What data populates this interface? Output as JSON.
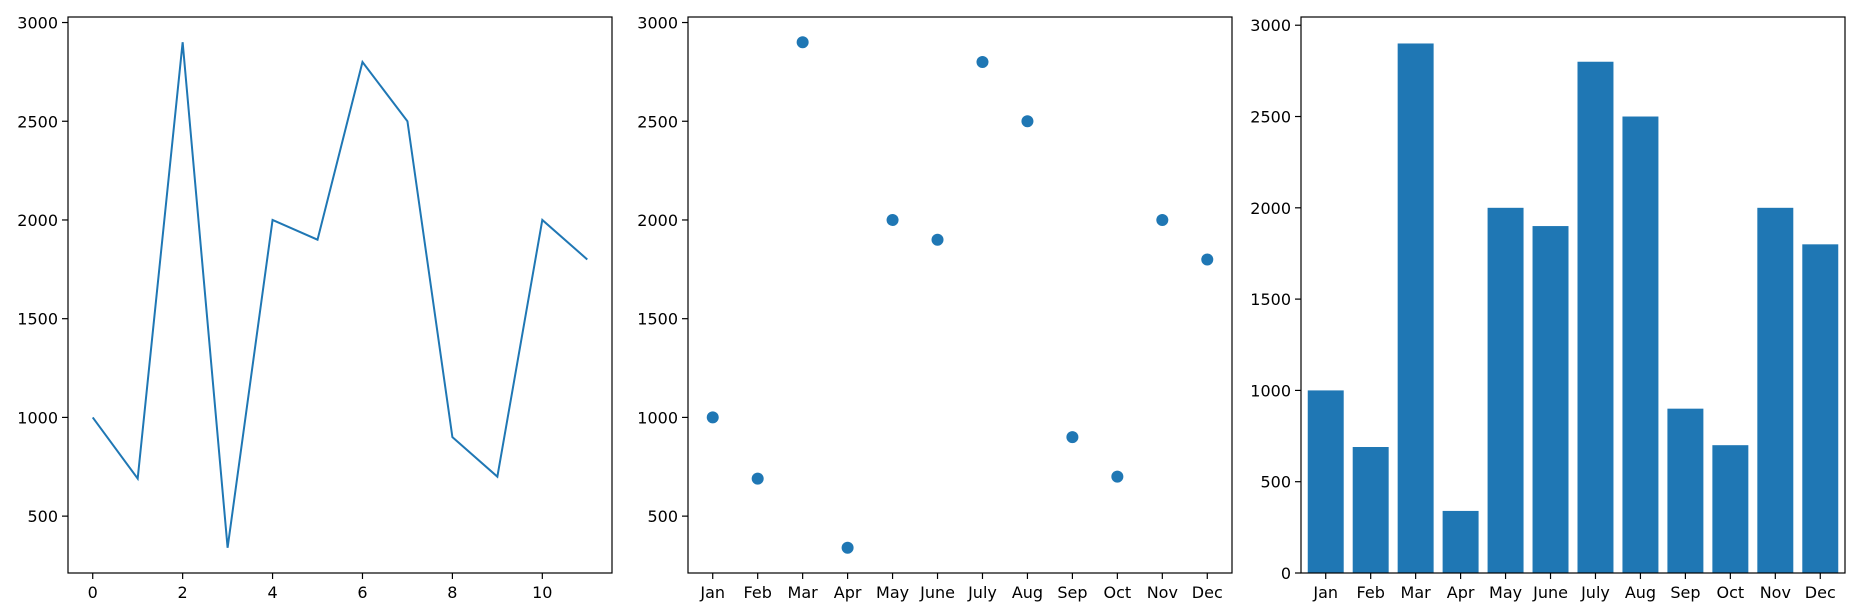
{
  "chart_data": [
    {
      "type": "line",
      "x": [
        0,
        1,
        2,
        3,
        4,
        5,
        6,
        7,
        8,
        9,
        10,
        11
      ],
      "values": [
        1000,
        690,
        2900,
        340,
        2000,
        1900,
        2800,
        2500,
        900,
        700,
        2000,
        1800
      ],
      "xticks": [
        0,
        2,
        4,
        6,
        8,
        10
      ],
      "yticks": [
        500,
        1000,
        1500,
        2000,
        2500,
        3000
      ],
      "xlim": [
        -0.55,
        11.55
      ],
      "ylim": [
        212,
        3028
      ],
      "color": "#1f77b4",
      "grid": false
    },
    {
      "type": "scatter",
      "categories": [
        "Jan",
        "Feb",
        "Mar",
        "Apr",
        "May",
        "June",
        "July",
        "Aug",
        "Sep",
        "Oct",
        "Nov",
        "Dec"
      ],
      "values": [
        1000,
        690,
        2900,
        340,
        2000,
        1900,
        2800,
        2500,
        900,
        700,
        2000,
        1800
      ],
      "yticks": [
        500,
        1000,
        1500,
        2000,
        2500,
        3000
      ],
      "ylim": [
        212,
        3028
      ],
      "color": "#1f77b4",
      "grid": false
    },
    {
      "type": "bar",
      "categories": [
        "Jan",
        "Feb",
        "Mar",
        "Apr",
        "May",
        "June",
        "July",
        "Aug",
        "Sep",
        "Oct",
        "Nov",
        "Dec"
      ],
      "values": [
        1000,
        690,
        2900,
        340,
        2000,
        1900,
        2800,
        2500,
        900,
        700,
        2000,
        1800
      ],
      "yticks": [
        0,
        500,
        1000,
        1500,
        2000,
        2500,
        3000
      ],
      "ylim": [
        0,
        3045
      ],
      "color": "#1f77b4",
      "grid": false
    }
  ]
}
